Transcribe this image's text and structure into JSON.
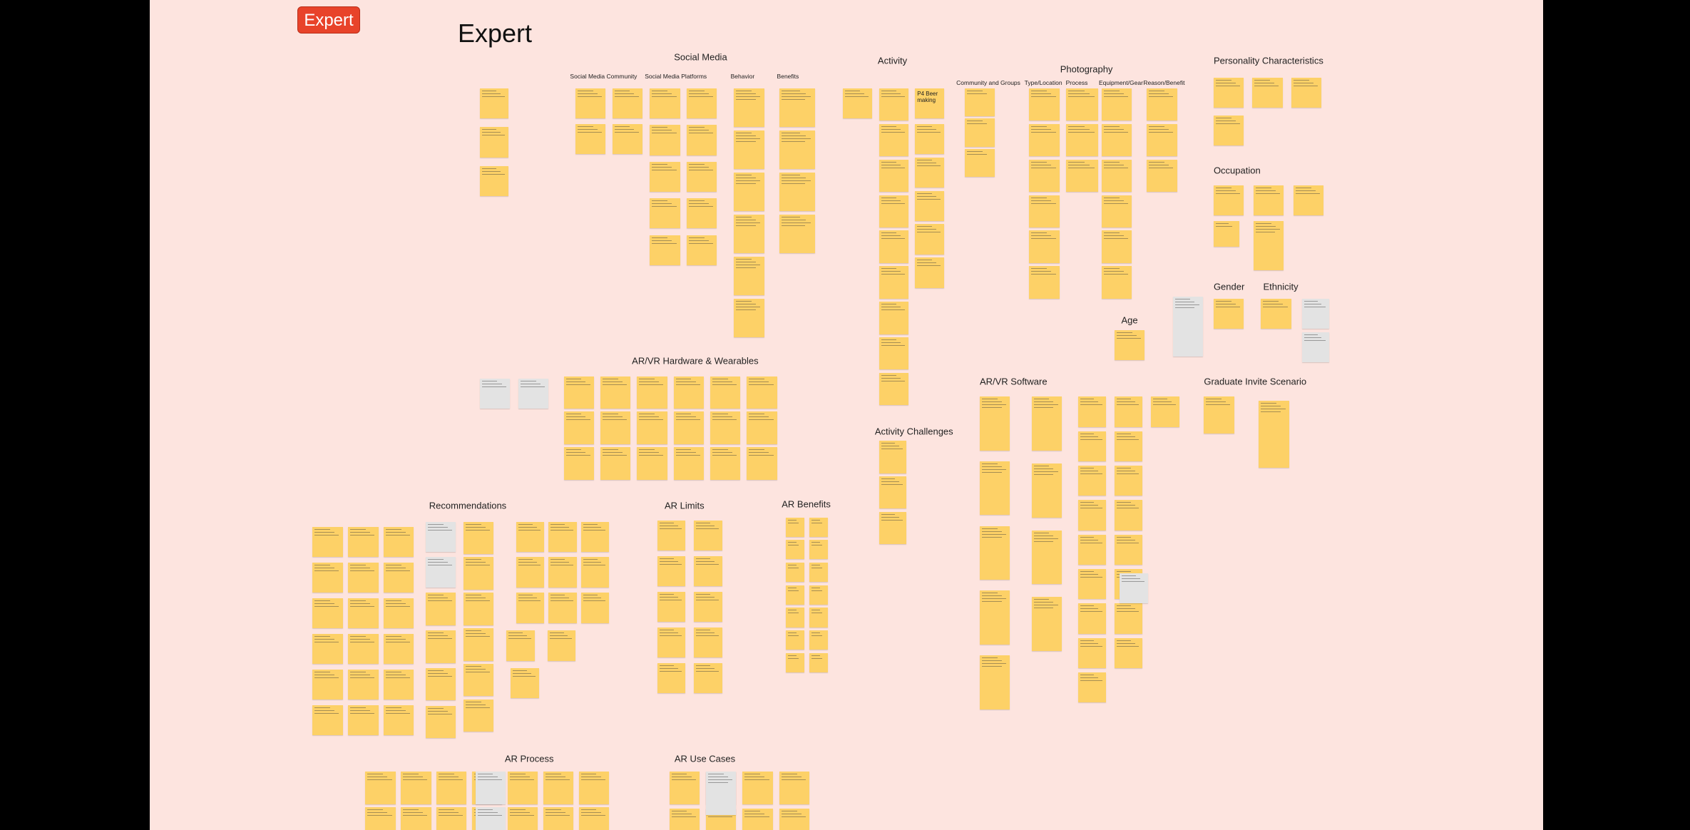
{
  "header": {
    "button": "Expert",
    "title": "Expert"
  },
  "sections": [
    "Social Media",
    "Activity",
    "Photography",
    "Personality Characteristics",
    "Occupation",
    "Gender",
    "Ethnicity",
    "Age",
    "AR/VR Hardware & Wearables",
    "AR/VR Software",
    "Graduate Invite Scenario",
    "Activity Challenges",
    "Recommendations",
    "AR Limits",
    "AR Benefits",
    "AR Process",
    "AR Use Cases"
  ],
  "subheadings": [
    "Social Media Community",
    "Social Media Platforms",
    "Behavior",
    "Benefits",
    "Community and Groups",
    "Type/Location",
    "Process",
    "Equipment/Gear",
    "Reason/Benefit"
  ],
  "notes": [
    "P4 Beer making"
  ]
}
